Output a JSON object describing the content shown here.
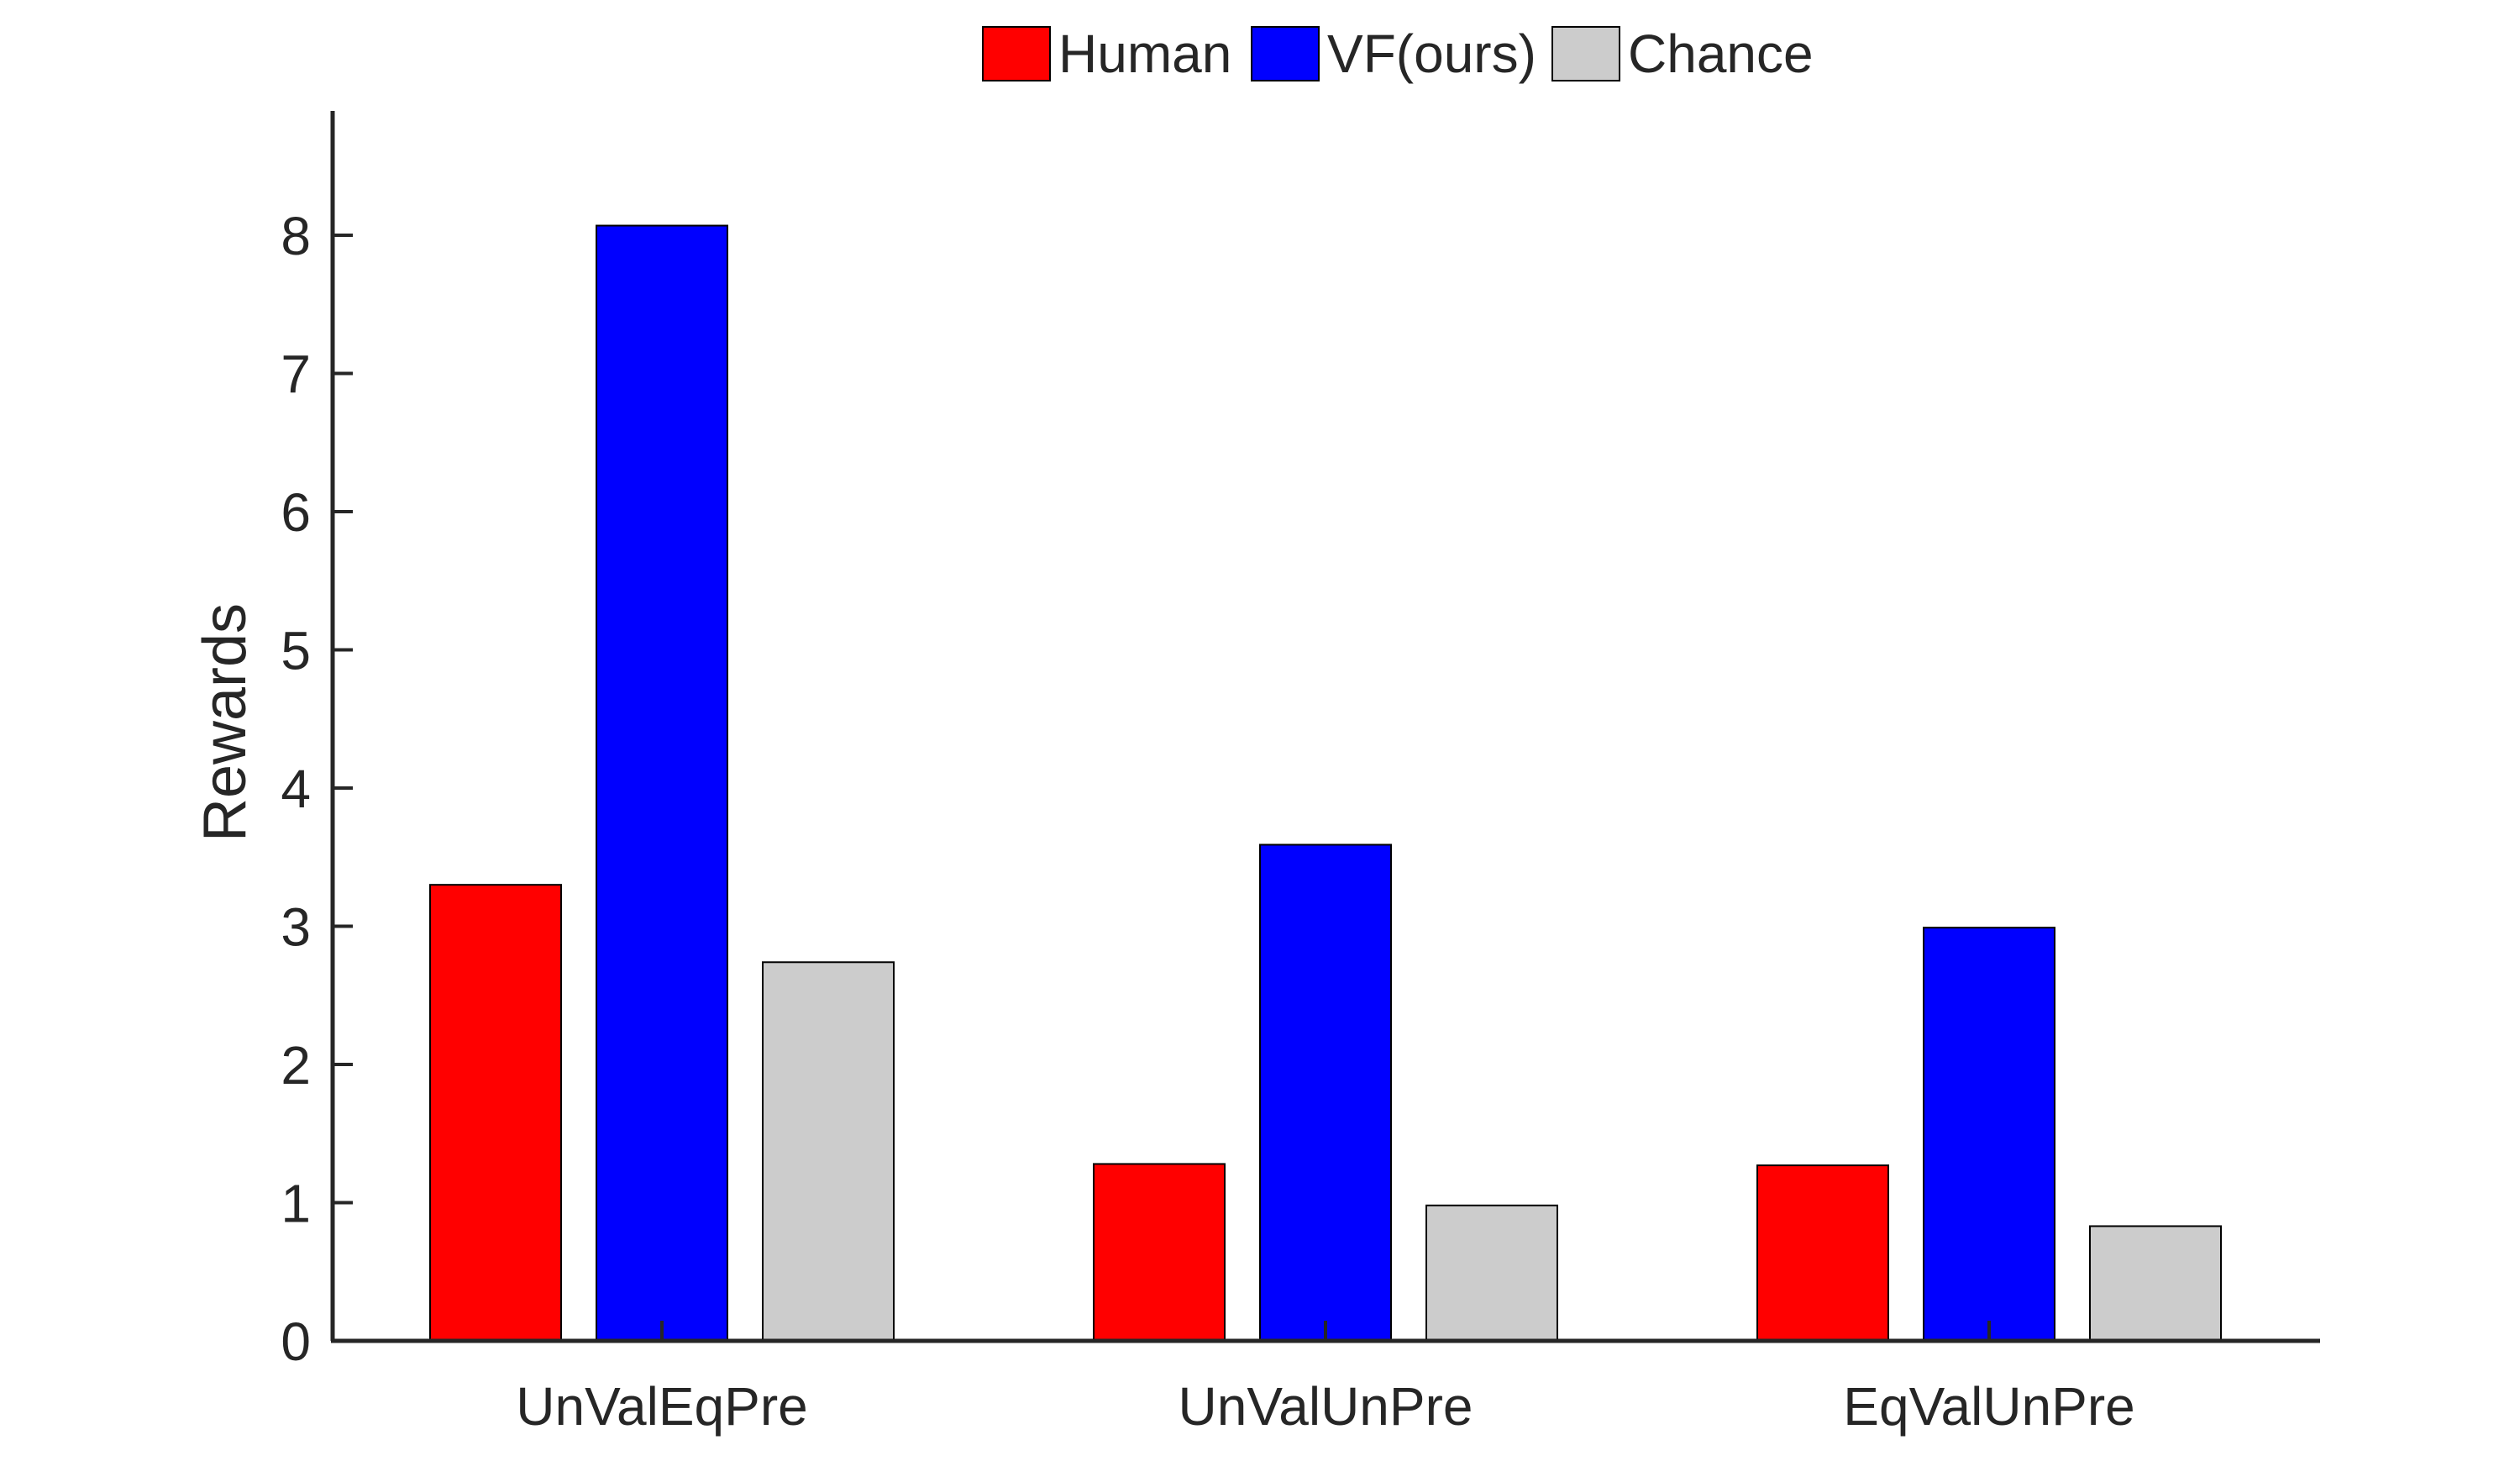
{
  "chart_data": {
    "type": "bar",
    "title": "",
    "xlabel": "",
    "ylabel": "Rewards",
    "ylim": [
      0,
      8.9
    ],
    "yticks": [
      0,
      1,
      2,
      3,
      4,
      5,
      6,
      7,
      8
    ],
    "categories": [
      "UnValEqPre",
      "UnValUnPre",
      "EqValUnPre"
    ],
    "series": [
      {
        "name": "Human",
        "color": "#ff0000",
        "values": [
          3.3,
          1.28,
          1.27
        ]
      },
      {
        "name": "VF(ours)",
        "color": "#0000ff",
        "values": [
          8.07,
          3.59,
          2.99
        ]
      },
      {
        "name": "Chance",
        "color": "#cccccc",
        "values": [
          2.74,
          0.98,
          0.83
        ]
      }
    ],
    "legend": {
      "position": "top-center",
      "orientation": "horizontal"
    },
    "grid": false
  }
}
